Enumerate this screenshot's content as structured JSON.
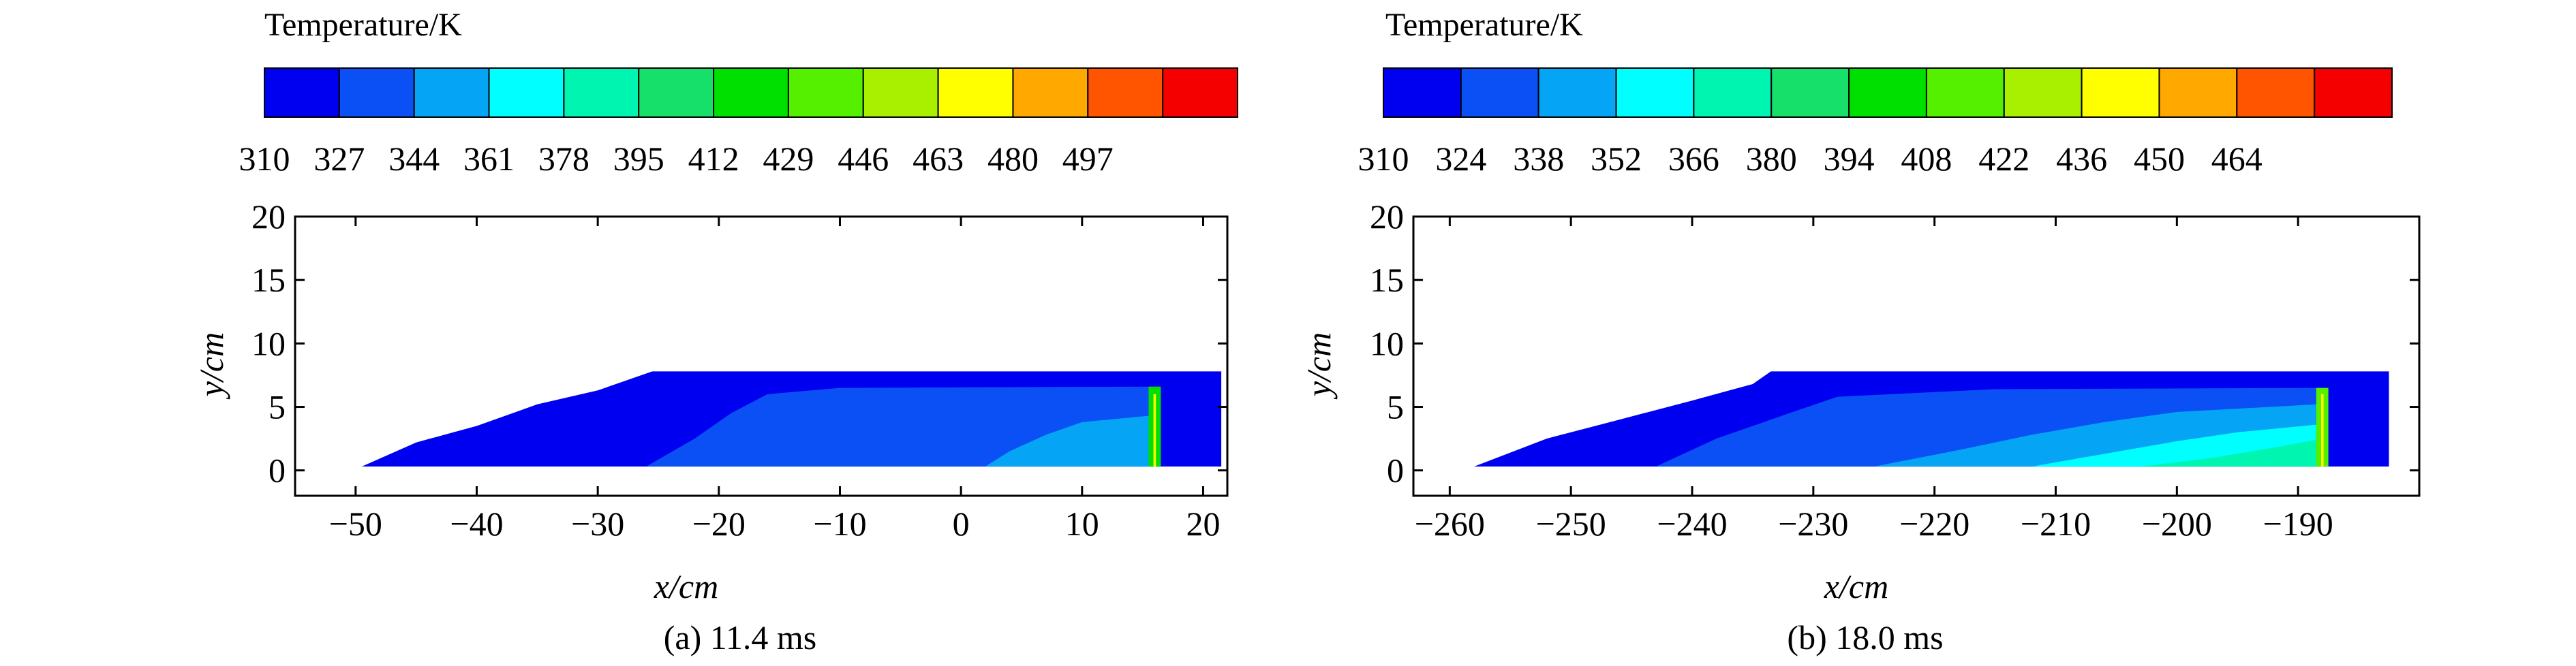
{
  "chart_data": [
    {
      "type": "heatmap",
      "panel_caption": "(a) 11.4 ms",
      "colorbar": {
        "title": "Temperature/K",
        "tick_labels": [
          "310",
          "327",
          "344",
          "361",
          "378",
          "395",
          "412",
          "429",
          "446",
          "463",
          "480",
          "497"
        ],
        "colors": [
          "#0000f0",
          "#0a50f5",
          "#06a4f5",
          "#00ffff",
          "#00f5b0",
          "#16e06a",
          "#00e000",
          "#55f000",
          "#a8f000",
          "#ffff00",
          "#ffa800",
          "#ff5500",
          "#f50000"
        ]
      },
      "xlabel": "x/cm",
      "ylabel": "y/cm",
      "xlim": [
        -55,
        22
      ],
      "ylim": [
        -2,
        20
      ],
      "xticks": [
        -50,
        -40,
        -30,
        -20,
        -10,
        0,
        10,
        20
      ],
      "yticks": [
        0,
        5,
        10,
        15,
        20
      ],
      "regions": [
        {
          "level": 310,
          "polygon": [
            [
              -49.5,
              0.3
            ],
            [
              -45,
              2.2
            ],
            [
              -40,
              3.5
            ],
            [
              -35,
              5.2
            ],
            [
              -30,
              6.3
            ],
            [
              -25.5,
              7.8
            ],
            [
              21.5,
              7.8
            ],
            [
              21.5,
              0.3
            ]
          ]
        },
        {
          "level": 327,
          "polygon": [
            [
              -26,
              0.3
            ],
            [
              -22,
              2.5
            ],
            [
              -19,
              4.5
            ],
            [
              -16,
              6.0
            ],
            [
              -10,
              6.5
            ],
            [
              16.5,
              6.6
            ],
            [
              16.5,
              0.3
            ]
          ]
        },
        {
          "level": 344,
          "polygon": [
            [
              2,
              0.3
            ],
            [
              4,
              1.5
            ],
            [
              7,
              2.8
            ],
            [
              10,
              3.8
            ],
            [
              15.5,
              4.3
            ],
            [
              15.5,
              0.3
            ]
          ]
        },
        {
          "level": 412,
          "polygon": [
            [
              15.5,
              0.3
            ],
            [
              15.5,
              6.6
            ],
            [
              16.5,
              6.6
            ],
            [
              16.5,
              0.3
            ]
          ]
        },
        {
          "level": 463,
          "polygon": [
            [
              15.9,
              0.3
            ],
            [
              15.9,
              6.0
            ],
            [
              16.1,
              6.0
            ],
            [
              16.1,
              0.3
            ]
          ]
        }
      ]
    },
    {
      "type": "heatmap",
      "panel_caption": "(b) 18.0 ms",
      "colorbar": {
        "title": "Temperature/K",
        "tick_labels": [
          "310",
          "324",
          "338",
          "352",
          "366",
          "380",
          "394",
          "408",
          "422",
          "436",
          "450",
          "464"
        ],
        "colors": [
          "#0000f0",
          "#0a50f5",
          "#06a4f5",
          "#00ffff",
          "#00f5b0",
          "#16e06a",
          "#00e000",
          "#55f000",
          "#a8f000",
          "#ffff00",
          "#ffa800",
          "#ff5500",
          "#f50000"
        ]
      },
      "xlabel": "x/cm",
      "ylabel": "y/cm",
      "xlim": [
        -263,
        -180
      ],
      "ylim": [
        -2,
        20
      ],
      "xticks": [
        -260,
        -250,
        -240,
        -230,
        -220,
        -210,
        -200,
        -190
      ],
      "yticks": [
        0,
        5,
        10,
        15,
        20
      ],
      "regions": [
        {
          "level": 310,
          "polygon": [
            [
              -258,
              0.3
            ],
            [
              -252,
              2.5
            ],
            [
              -246,
              4.0
            ],
            [
              -240,
              5.5
            ],
            [
              -235,
              6.8
            ],
            [
              -233.5,
              7.8
            ],
            [
              -182.5,
              7.8
            ],
            [
              -182.5,
              0.3
            ]
          ]
        },
        {
          "level": 327,
          "polygon": [
            [
              -243,
              0.3
            ],
            [
              -238,
              2.5
            ],
            [
              -232,
              4.5
            ],
            [
              -228,
              5.8
            ],
            [
              -215,
              6.4
            ],
            [
              -188,
              6.5
            ],
            [
              -188,
              0.3
            ]
          ]
        },
        {
          "level": 344,
          "polygon": [
            [
              -225,
              0.3
            ],
            [
              -218,
              1.6
            ],
            [
              -212,
              2.8
            ],
            [
              -206,
              3.8
            ],
            [
              -200,
              4.6
            ],
            [
              -188.5,
              5.2
            ],
            [
              -188.5,
              0.3
            ]
          ]
        },
        {
          "level": 361,
          "polygon": [
            [
              -212,
              0.3
            ],
            [
              -206,
              1.3
            ],
            [
              -200,
              2.3
            ],
            [
              -195,
              3.0
            ],
            [
              -188.5,
              3.6
            ],
            [
              -188.5,
              0.3
            ]
          ]
        },
        {
          "level": 378,
          "polygon": [
            [
              -203,
              0.3
            ],
            [
              -197,
              1.0
            ],
            [
              -192,
              1.8
            ],
            [
              -188.5,
              2.4
            ],
            [
              -188.5,
              0.3
            ]
          ]
        },
        {
          "level": 412,
          "polygon": [
            [
              -188.5,
              0.3
            ],
            [
              -188.5,
              6.5
            ],
            [
              -187.5,
              6.5
            ],
            [
              -187.5,
              0.3
            ]
          ]
        },
        {
          "level": 446,
          "polygon": [
            [
              -188.1,
              0.3
            ],
            [
              -188.1,
              6.0
            ],
            [
              -187.9,
              6.0
            ],
            [
              -187.9,
              0.3
            ]
          ]
        }
      ]
    }
  ]
}
